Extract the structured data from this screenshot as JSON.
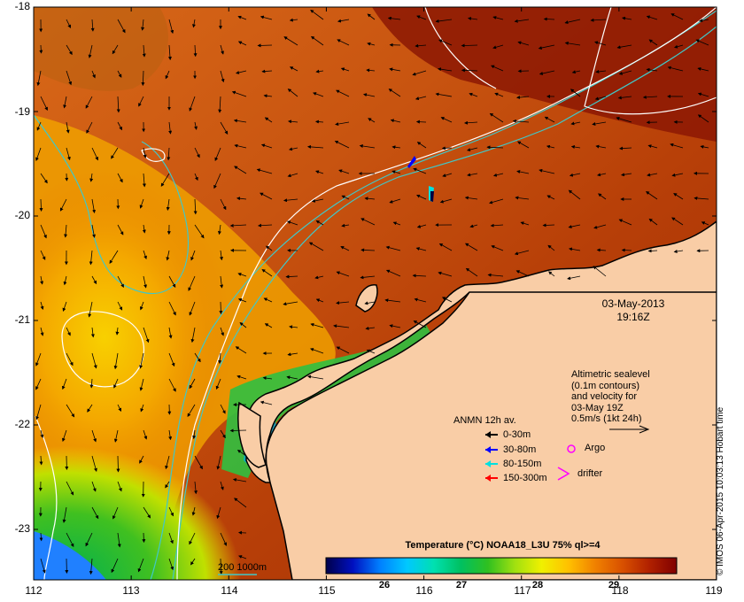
{
  "map": {
    "lon_ticks": [
      "112",
      "113",
      "114",
      "115",
      "116",
      "117",
      "118",
      "119"
    ],
    "lat_ticks": [
      "-18",
      "-19",
      "-20",
      "-21",
      "-22",
      "-23"
    ],
    "timestamp_date": "03-May-2013",
    "timestamp_time": "19:16Z",
    "land_color": "#f9cda6",
    "coastline_color": "#000000"
  },
  "altimetry_legend": {
    "line1": "Altimetric sealevel",
    "line2": "(0.1m contours)",
    "line3": "and velocity for",
    "line4": "03-May 19Z",
    "scale": "0.5m/s (1kt 24h)"
  },
  "anmn_legend": {
    "title": "ANMN 12h av.",
    "items": [
      {
        "label": "0-30m",
        "color": "#000000"
      },
      {
        "label": "30-80m",
        "color": "#0000ff"
      },
      {
        "label": "80-150m",
        "color": "#00e0e0"
      },
      {
        "label": "150-300m",
        "color": "#ff0000"
      }
    ]
  },
  "markers": {
    "argo_label": "Argo",
    "argo_color": "#ff00ff",
    "drifter_label": "drifter",
    "drifter_color": "#ff00ff"
  },
  "isobath_legend": {
    "label": "200  1000m",
    "color": "#40c0c0"
  },
  "colorbar": {
    "title": "Temperature (°C) NOAA18_L3U 75% ql>=4",
    "ticks": [
      "26",
      "27",
      "28",
      "29"
    ],
    "gradient": [
      "#00004a",
      "#0010c0",
      "#0080ff",
      "#00c8ff",
      "#00e0b0",
      "#00c060",
      "#30c020",
      "#a0e010",
      "#f0f000",
      "#ffc000",
      "#f08000",
      "#d85000",
      "#b02000",
      "#800000"
    ]
  },
  "credit": "© IMOS 06-Apr-2015 10:03:13 Hobart time"
}
